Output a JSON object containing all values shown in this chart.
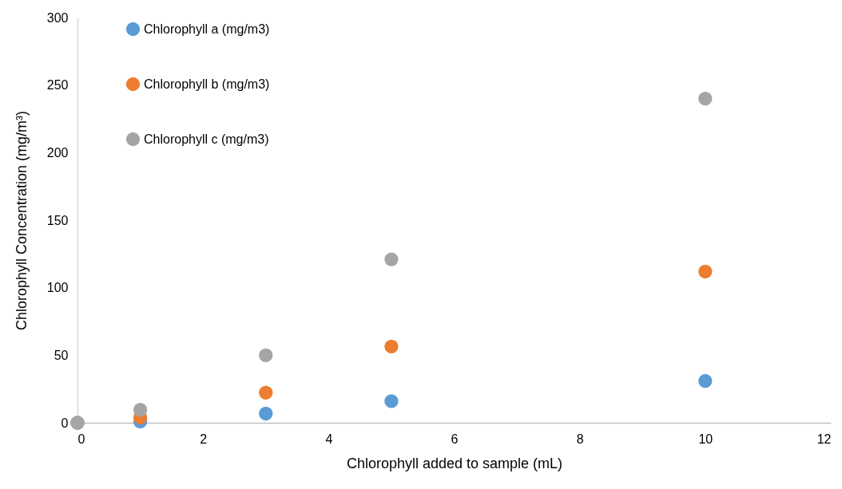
{
  "chart_data": {
    "type": "scatter",
    "xlabel": "Chlorophyll added to sample (mL)",
    "ylabel": "Chlorophyll Concentration (mg/m³)",
    "x": [
      0,
      1,
      3,
      5,
      10
    ],
    "series": [
      {
        "name": "Chlorophyll a (mg/m3)",
        "color": "#5b9bd5",
        "values": [
          0,
          1,
          6.8,
          16,
          31
        ]
      },
      {
        "name": "Chlorophyll b (mg/m3)",
        "color": "#ed7d31",
        "values": [
          0,
          3.9,
          22.3,
          56.5,
          112
        ]
      },
      {
        "name": "Chlorophyll c (mg/m3)",
        "color": "#a5a5a5",
        "values": [
          0,
          9.6,
          50,
          121,
          240
        ]
      }
    ],
    "xlim": [
      0,
      12
    ],
    "xticks": [
      0,
      2,
      4,
      6,
      8,
      10,
      12
    ],
    "ylim": [
      0,
      300
    ],
    "yticks": [
      0,
      50,
      100,
      150,
      200,
      250,
      300
    ],
    "grid": false,
    "legend": "top left",
    "marker": "circle"
  }
}
